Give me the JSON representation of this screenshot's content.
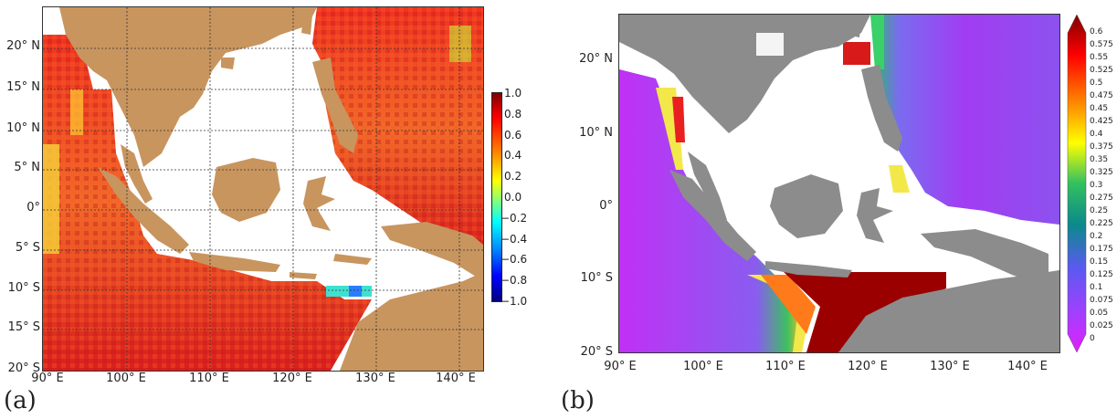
{
  "panels": [
    {
      "id": "a",
      "label": "(a)",
      "x_ticks": [
        "90° E",
        "100° E",
        "110° E",
        "120° E",
        "130° E",
        "140° E"
      ],
      "y_ticks": [
        "20° N",
        "15° N",
        "10° N",
        "5° N",
        "0°",
        "5° S",
        "10° S",
        "15° S",
        "20° S"
      ],
      "colorbar": {
        "ticks": [
          "1.0",
          "0.8",
          "0.6",
          "0.4",
          "0.2",
          "0.0",
          "−0.2",
          "−0.4",
          "−0.6",
          "−0.8",
          "−1.0"
        ],
        "colormap": "jet",
        "range": [
          -1.0,
          1.0
        ]
      },
      "land_color": "#c8955f",
      "ocean_missing_color": "#ffffff",
      "grid": true
    },
    {
      "id": "b",
      "label": "(b)",
      "x_ticks": [
        "90° E",
        "100° E",
        "110° E",
        "120° E",
        "130° E",
        "140° E"
      ],
      "y_ticks": [
        "20° N",
        "10° N",
        "0°",
        "10° S",
        "20° S"
      ],
      "colorbar": {
        "ticks": [
          "0.6",
          "0.575",
          "0.55",
          "0.525",
          "0.5",
          "0.475",
          "0.45",
          "0.425",
          "0.4",
          "0.375",
          "0.35",
          "0.325",
          "0.3",
          "0.275",
          "0.25",
          "0.225",
          "0.2",
          "0.175",
          "0.15",
          "0.125",
          "0.1",
          "0.075",
          "0.05",
          "0.025",
          "0"
        ],
        "colormap": "rainbow-magenta-to-darkred",
        "range": [
          0,
          0.6
        ]
      },
      "land_color": "#8c8c8c",
      "ocean_missing_color": "#ffffff",
      "grid": false
    }
  ]
}
